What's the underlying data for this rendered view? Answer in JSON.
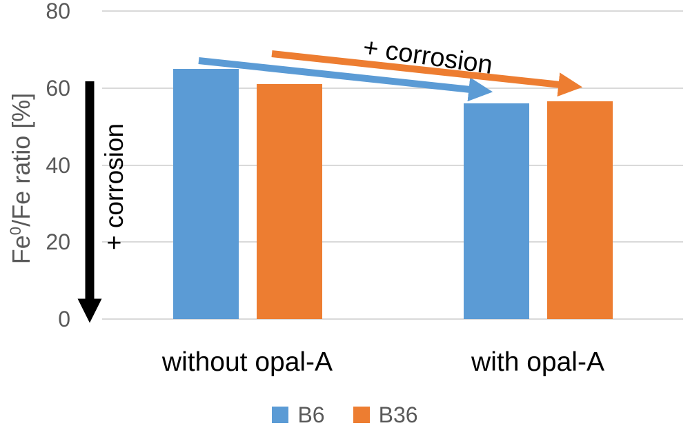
{
  "colors": {
    "b6_blue": "#5B9BD5",
    "b36_orange": "#ED7D31",
    "gridline": "#D9D9D9",
    "axis_text": "#595959",
    "annotation_black": "#000000",
    "background": "#FFFFFF"
  },
  "chart_data": {
    "type": "bar",
    "title": "",
    "categories": [
      "without opal-A",
      "with opal-A"
    ],
    "series": [
      {
        "name": "B6",
        "color": "#5B9BD5",
        "values": [
          65,
          56
        ]
      },
      {
        "name": "B36",
        "color": "#ED7D31",
        "values": [
          61,
          56.5
        ]
      }
    ],
    "xlabel": "",
    "ylabel": "Fe0/Fe ratio [%]",
    "ylabel_parts": {
      "pre": "Fe",
      "sup": "0",
      "post": "/Fe ratio [%]"
    },
    "ylim": [
      0,
      80
    ],
    "yticks": [
      0,
      20,
      40,
      60,
      80
    ],
    "grid": true,
    "legend_position": "bottom"
  },
  "annotations": {
    "vertical_arrow_label": "+ corrosion",
    "top_arrow_label": "+ corrosion"
  }
}
